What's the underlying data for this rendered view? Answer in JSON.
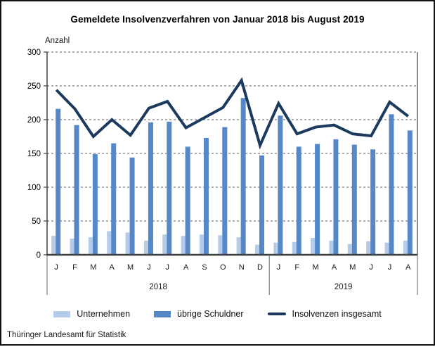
{
  "title": "Gemeldete Insolvenzverfahren von Januar 2018 bis August 2019",
  "footer": "Thüringer Landesamt für Statistik",
  "colors": {
    "light_bar": "#b4cce9",
    "mid_bar": "#5688c8",
    "line": "#1c3a5e",
    "axis": "#3f3f3f",
    "grid": "#595959",
    "divider": "#666666"
  },
  "legend": [
    {
      "label": "Unternehmen",
      "swatch": "light-bar"
    },
    {
      "label": "übrige Schuldner",
      "swatch": "mid-bar"
    },
    {
      "label": "Insolvenzen insgesamt",
      "swatch": "line"
    }
  ],
  "chart_data": {
    "type": "bar",
    "title": "Gemeldete Insolvenzverfahren von Januar 2018 bis August 2019",
    "ylabel": "Anzahl",
    "xlabel": "",
    "ylim": [
      0,
      300
    ],
    "ytick_step": 50,
    "grid": "horizontal-dashed",
    "legend_position": "bottom",
    "categories": [
      "J",
      "F",
      "M",
      "A",
      "M",
      "J",
      "J",
      "A",
      "S",
      "O",
      "N",
      "D",
      "J",
      "F",
      "M",
      "A",
      "M",
      "J",
      "J",
      "A"
    ],
    "year_groups": [
      {
        "label": "2018",
        "months": 12
      },
      {
        "label": "2019",
        "months": 8
      }
    ],
    "series": [
      {
        "name": "Unternehmen",
        "type": "bar",
        "values": [
          28,
          24,
          26,
          35,
          33,
          21,
          30,
          28,
          30,
          29,
          26,
          15,
          18,
          19,
          25,
          21,
          16,
          20,
          18,
          21
        ]
      },
      {
        "name": "übrige Schuldner",
        "type": "bar",
        "values": [
          216,
          192,
          149,
          165,
          144,
          196,
          197,
          160,
          173,
          189,
          232,
          147,
          206,
          160,
          164,
          171,
          163,
          156,
          208,
          184
        ]
      },
      {
        "name": "Insolvenzen insgesamt",
        "type": "line",
        "values": [
          244,
          216,
          175,
          200,
          177,
          217,
          227,
          188,
          203,
          218,
          258,
          162,
          224,
          179,
          189,
          192,
          179,
          176,
          226,
          205
        ]
      }
    ]
  }
}
